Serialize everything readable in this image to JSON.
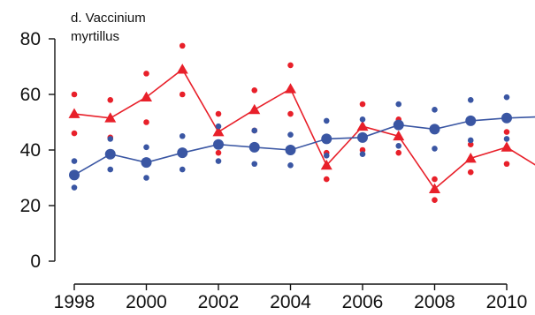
{
  "chart_data": {
    "type": "line",
    "title_lines": [
      "d. Vaccinium",
      "myrtillus"
    ],
    "xlabel": "",
    "ylabel": "",
    "xlim": [
      1997.5,
      2011
    ],
    "ylim": [
      0,
      82
    ],
    "x_ticks": [
      1998,
      2000,
      2002,
      2004,
      2006,
      2008,
      2010
    ],
    "y_ticks": [
      0,
      20,
      40,
      60,
      80
    ],
    "grid": false,
    "legend": "none",
    "x": [
      1998,
      1999,
      2000,
      2001,
      2002,
      2003,
      2004,
      2005,
      2006,
      2007,
      2008,
      2009,
      2010,
      2011
    ],
    "series": [
      {
        "color": "#e8202a",
        "marker": "triangle",
        "values": [
          53,
          51.5,
          59,
          69,
          46.5,
          54.5,
          62,
          34.5,
          48.5,
          45,
          26,
          37,
          41,
          33
        ],
        "upper": [
          60,
          58,
          67.5,
          77.5,
          53,
          61.5,
          70.5,
          39,
          56.5,
          51,
          29.5,
          42,
          46.5,
          null
        ],
        "lower": [
          46,
          44.5,
          50,
          60,
          39,
          47,
          53,
          29.5,
          40,
          39,
          22,
          32,
          35,
          null
        ]
      },
      {
        "color": "#3a56a3",
        "marker": "circle",
        "values": [
          31,
          38.5,
          35.5,
          39,
          42,
          41,
          40,
          44,
          44.5,
          49,
          47.5,
          50.5,
          51.5,
          52
        ],
        "upper": [
          36,
          44,
          41,
          45,
          48.5,
          47,
          45.5,
          50.5,
          51,
          56.5,
          54.5,
          58,
          59,
          null
        ],
        "lower": [
          26.5,
          33,
          30,
          33,
          36,
          35,
          34.5,
          38,
          38.5,
          41.5,
          40.5,
          43.5,
          44,
          null
        ]
      }
    ]
  }
}
